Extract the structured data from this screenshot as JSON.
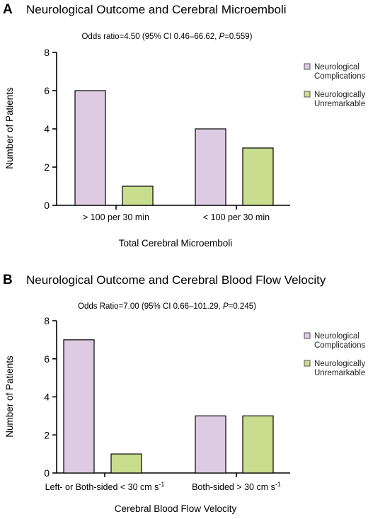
{
  "panels": [
    {
      "letter": "A",
      "title": "Neurological Outcome and Cerebral Microemboli",
      "odds_prefix": "Odds ratio=4.50 (95% CI 0.46–66.62, ",
      "odds_p": "P",
      "odds_suffix": "=0.559)",
      "chart_data": {
        "type": "bar",
        "categories": [
          "> 100 per 30 min",
          "< 100 per 30 min"
        ],
        "series": [
          {
            "name": "Neurological Complications",
            "color": "#dccbe3",
            "values": [
              6,
              4
            ]
          },
          {
            "name": "Neurologically Unremarkable",
            "color": "#c9dd8f",
            "values": [
              1,
              3
            ]
          }
        ],
        "xlabel": "Total Cerebral Microemboli",
        "ylabel": "Number of Patients",
        "ylim": [
          0,
          8
        ],
        "yticks": [
          "0",
          "2",
          "4",
          "6",
          "8"
        ],
        "grid": false,
        "legend_position": "right"
      },
      "legend": [
        {
          "line1": "Neurological",
          "line2": "Complications"
        },
        {
          "line1": "Neurologically",
          "line2": "Unremarkable"
        }
      ],
      "category_labels": [
        {
          "text": "> 100 per 30 min"
        },
        {
          "text": "< 100 per 30 min"
        }
      ]
    },
    {
      "letter": "B",
      "title": "Neurological Outcome and Cerebral Blood Flow Velocity",
      "odds_prefix": "Odds Ratio=7.00 (95% CI 0.66–101.29, ",
      "odds_p": "P",
      "odds_suffix": "=0.245)",
      "chart_data": {
        "type": "bar",
        "categories": [
          "Left- or Both-sided < 30 cm s-1",
          "Both-sided > 30 cm s-1"
        ],
        "series": [
          {
            "name": "Neurological Complications",
            "color": "#dccbe3",
            "values": [
              7,
              3
            ]
          },
          {
            "name": "Neurologically Unremarkable",
            "color": "#c9dd8f",
            "values": [
              1,
              3
            ]
          }
        ],
        "xlabel": "Cerebral Blood Flow Velocity",
        "ylabel": "Number of Patients",
        "ylim": [
          0,
          8
        ],
        "yticks": [
          "0",
          "2",
          "4",
          "6",
          "8"
        ],
        "grid": false,
        "legend_position": "right"
      },
      "legend": [
        {
          "line1": "Neurological",
          "line2": "Complications"
        },
        {
          "line1": "Neurologically",
          "line2": "Unremarkable"
        }
      ],
      "category_labels": [
        {
          "text": "Left- or Both-sided < 30 cm s",
          "sup": "-1"
        },
        {
          "text": "Both-sided > 30 cm s",
          "sup": "-1"
        }
      ]
    }
  ]
}
